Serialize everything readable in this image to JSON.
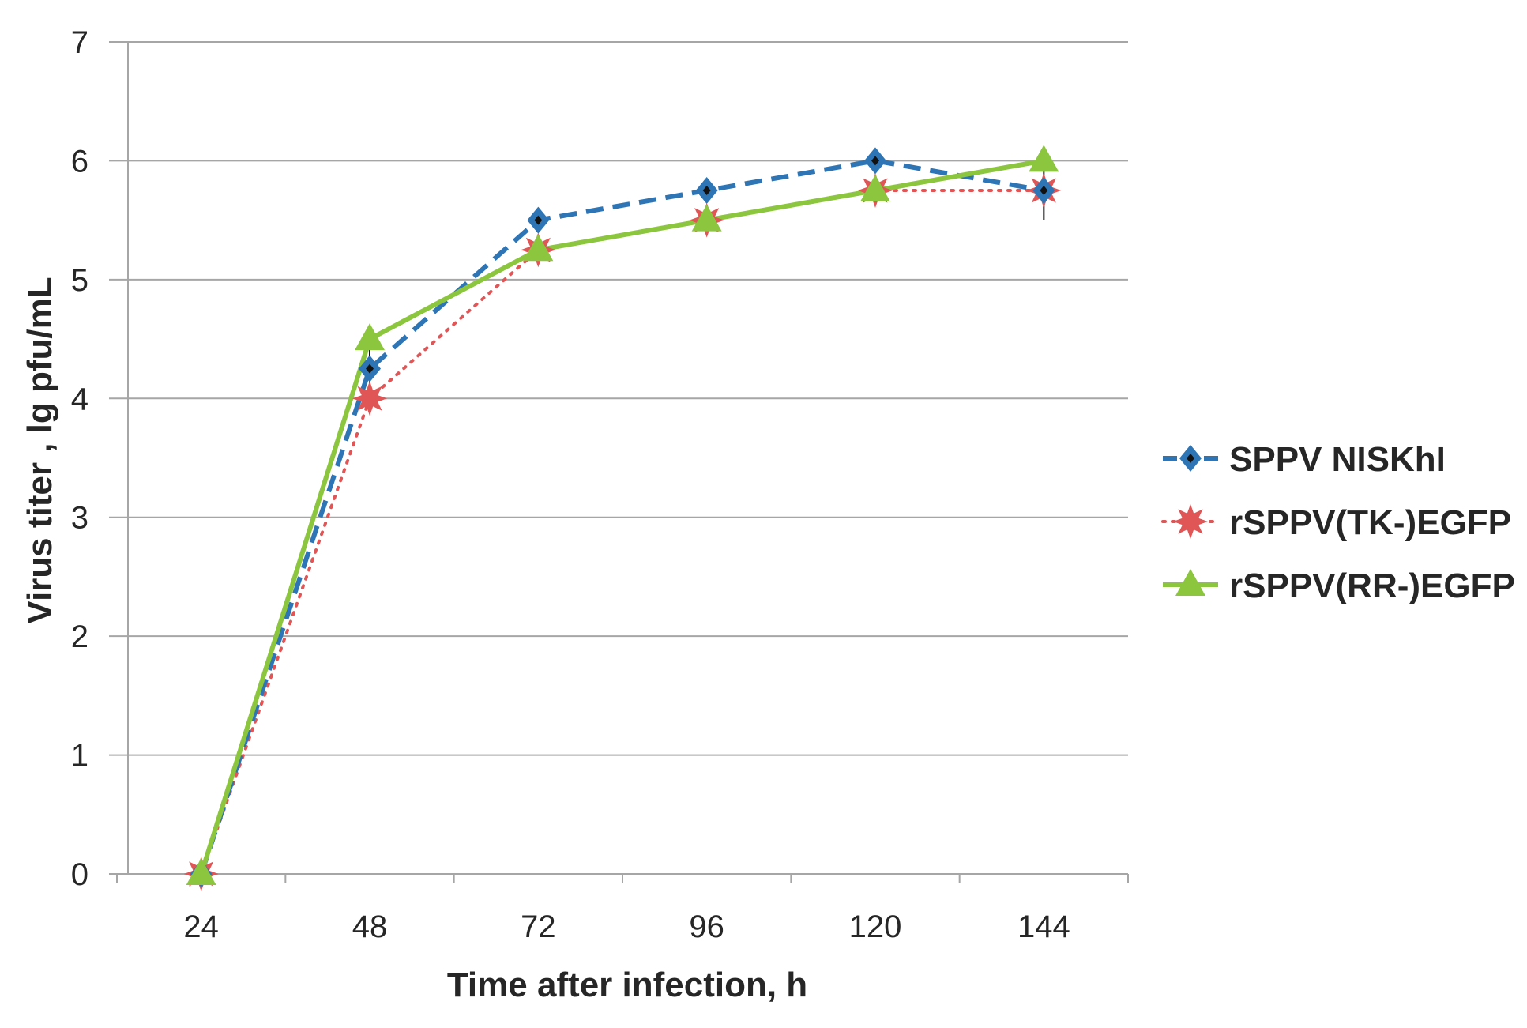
{
  "chart_data": {
    "type": "line",
    "title": "",
    "xlabel": "Time after infection, h",
    "ylabel": "Virus titer , lg pfu/mL",
    "categories": [
      "24",
      "48",
      "72",
      "96",
      "120",
      "144"
    ],
    "ylim": [
      0,
      7
    ],
    "yticks": [
      "0",
      "1",
      "2",
      "3",
      "4",
      "5",
      "6",
      "7"
    ],
    "grid": true,
    "legend_position": "right",
    "series": [
      {
        "name": "SPPV NISKhI",
        "values": [
          0,
          4.25,
          5.5,
          5.75,
          6.0,
          5.75
        ],
        "errors": [
          0,
          0.25,
          0.0,
          0.0,
          0.0,
          0.25
        ],
        "color": "#2e75b6",
        "line_style": "dashed",
        "marker": "diamond"
      },
      {
        "name": "rSPPV(TK-)EGFP",
        "values": [
          0,
          4.0,
          5.25,
          5.5,
          5.75,
          5.75
        ],
        "errors": [
          0,
          0,
          0,
          0,
          0,
          0
        ],
        "color": "#e05555",
        "line_style": "dotted",
        "marker": "star"
      },
      {
        "name": "rSPPV(RR-)EGFP",
        "values": [
          0,
          4.5,
          5.25,
          5.5,
          5.75,
          6.0
        ],
        "errors": [
          0,
          0,
          0,
          0,
          0,
          0
        ],
        "color": "#8cc63f",
        "line_style": "solid",
        "marker": "triangle"
      }
    ]
  }
}
